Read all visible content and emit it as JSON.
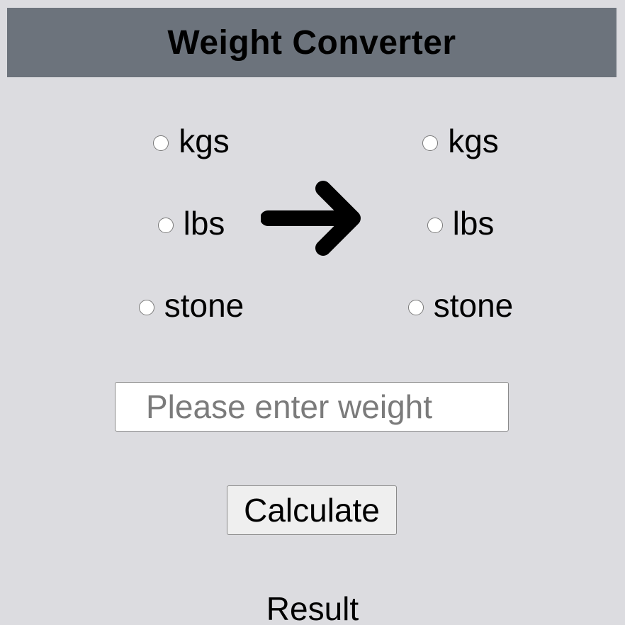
{
  "header": {
    "title": "Weight Converter"
  },
  "from_units": {
    "options": [
      "kgs",
      "lbs",
      "stone"
    ],
    "selected": null
  },
  "to_units": {
    "options": [
      "kgs",
      "lbs",
      "stone"
    ],
    "selected": null
  },
  "arrow_icon": "arrow-right-icon",
  "weight_input": {
    "value": "",
    "placeholder": "Please enter weight"
  },
  "calculate_button": {
    "label": "Calculate"
  },
  "result": {
    "text": "Result"
  },
  "colors": {
    "background": "#dcdce0",
    "header_background": "#6c737c",
    "text": "#000000"
  }
}
